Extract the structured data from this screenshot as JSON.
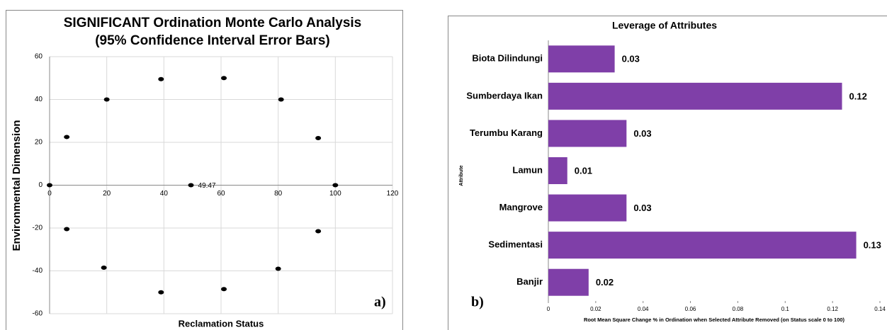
{
  "chart_data": [
    {
      "type": "scatter",
      "title": [
        "SIGNIFICANT Ordination Monte Carlo Analysis",
        "(95% Confidence Interval Error Bars)"
      ],
      "x_label": "Reclamation Status",
      "y_label": "Environmental Dimension",
      "annotation": "a)",
      "x": [
        0,
        6,
        20,
        39,
        61,
        81,
        94,
        100,
        94,
        80,
        61,
        39,
        19,
        6,
        49.47
      ],
      "y": [
        0,
        22.5,
        40,
        49.5,
        50,
        40,
        22,
        0,
        -21.5,
        -39,
        -48.5,
        -50,
        -38.5,
        -20.5,
        0
      ],
      "value_labels": [
        null,
        null,
        null,
        null,
        null,
        null,
        null,
        null,
        null,
        null,
        null,
        null,
        null,
        null,
        "49.47"
      ],
      "color": "#000000",
      "xlim": [
        0,
        120
      ],
      "xticks": [
        0,
        20,
        40,
        60,
        80,
        100,
        120
      ],
      "ylim": [
        -60,
        60
      ],
      "yticks": [
        -60,
        -40,
        -20,
        0,
        20,
        40,
        60
      ],
      "grid": true
    },
    {
      "type": "hbar",
      "title": "Leverage of Attributes",
      "x_label": "Root Mean Square Change % in Ordination when Selected Attribute Removed (on Status scale 0 to 100)",
      "y_label": "Attribute",
      "annotation": "b)",
      "categories": [
        "Biota Dilindungi",
        "Sumberdaya Ikan",
        "Terumbu Karang",
        "Lamun",
        "Mangrove",
        "Sedimentasi",
        "Banjir"
      ],
      "values": [
        0.028,
        0.124,
        0.033,
        0.008,
        0.033,
        0.13,
        0.017
      ],
      "value_labels": [
        "0.03",
        "0.12",
        "0.03",
        "0.01",
        "0.03",
        "0.13",
        "0.02"
      ],
      "color": "#7f3fa8",
      "xlim": [
        0,
        0.14
      ],
      "xticks": [
        0,
        0.02,
        0.04,
        0.06,
        0.08,
        0.1,
        0.12,
        0.14
      ],
      "grid": false
    }
  ]
}
